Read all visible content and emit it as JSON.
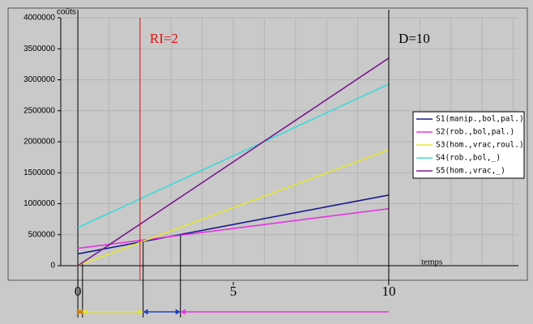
{
  "chart_data": {
    "type": "line",
    "y_label": "coûts",
    "x_label": "temps",
    "x": [
      0,
      10
    ],
    "xlim": [
      -0.55,
      14.17
    ],
    "xticks": [
      0,
      5,
      10
    ],
    "ylim": [
      0,
      4000000
    ],
    "yticks": [
      0,
      500000,
      1000000,
      1500000,
      2000000,
      2500000,
      3000000,
      3500000,
      4000000
    ],
    "grid": true,
    "legend": "right",
    "series": [
      {
        "name": "S1(manip.,bol,pal.)",
        "color": "#1a1a8c",
        "values": [
          190000,
          1140000
        ]
      },
      {
        "name": "S2(rob.,bol,pal.)",
        "color": "#e633e0",
        "values": [
          280000,
          920000
        ]
      },
      {
        "name": "S3(hom.,vrac,roul.)",
        "color": "#e6e633",
        "values": [
          0,
          1870000
        ]
      },
      {
        "name": "S4(rob.,bol,_)",
        "color": "#40d8d8",
        "values": [
          614000,
          2930000
        ]
      },
      {
        "name": "S5(hom.,vrac,_)",
        "color": "#7a1a8c",
        "values": [
          0,
          3350000
        ]
      }
    ],
    "annotations": [
      {
        "x": 2,
        "label": "RI=2",
        "color": "#e01010"
      },
      {
        "x": 10,
        "label": "D=10",
        "color": "#000000"
      }
    ],
    "phases": [
      {
        "from": 0,
        "to": 0.15,
        "color": "#d08000"
      },
      {
        "from": 0.15,
        "to": 2.1,
        "color": "#e6e633"
      },
      {
        "from": 2.1,
        "to": 3.3,
        "color": "#2040c0"
      },
      {
        "from": 3.3,
        "to": 10,
        "color": "#e633e0"
      }
    ]
  }
}
